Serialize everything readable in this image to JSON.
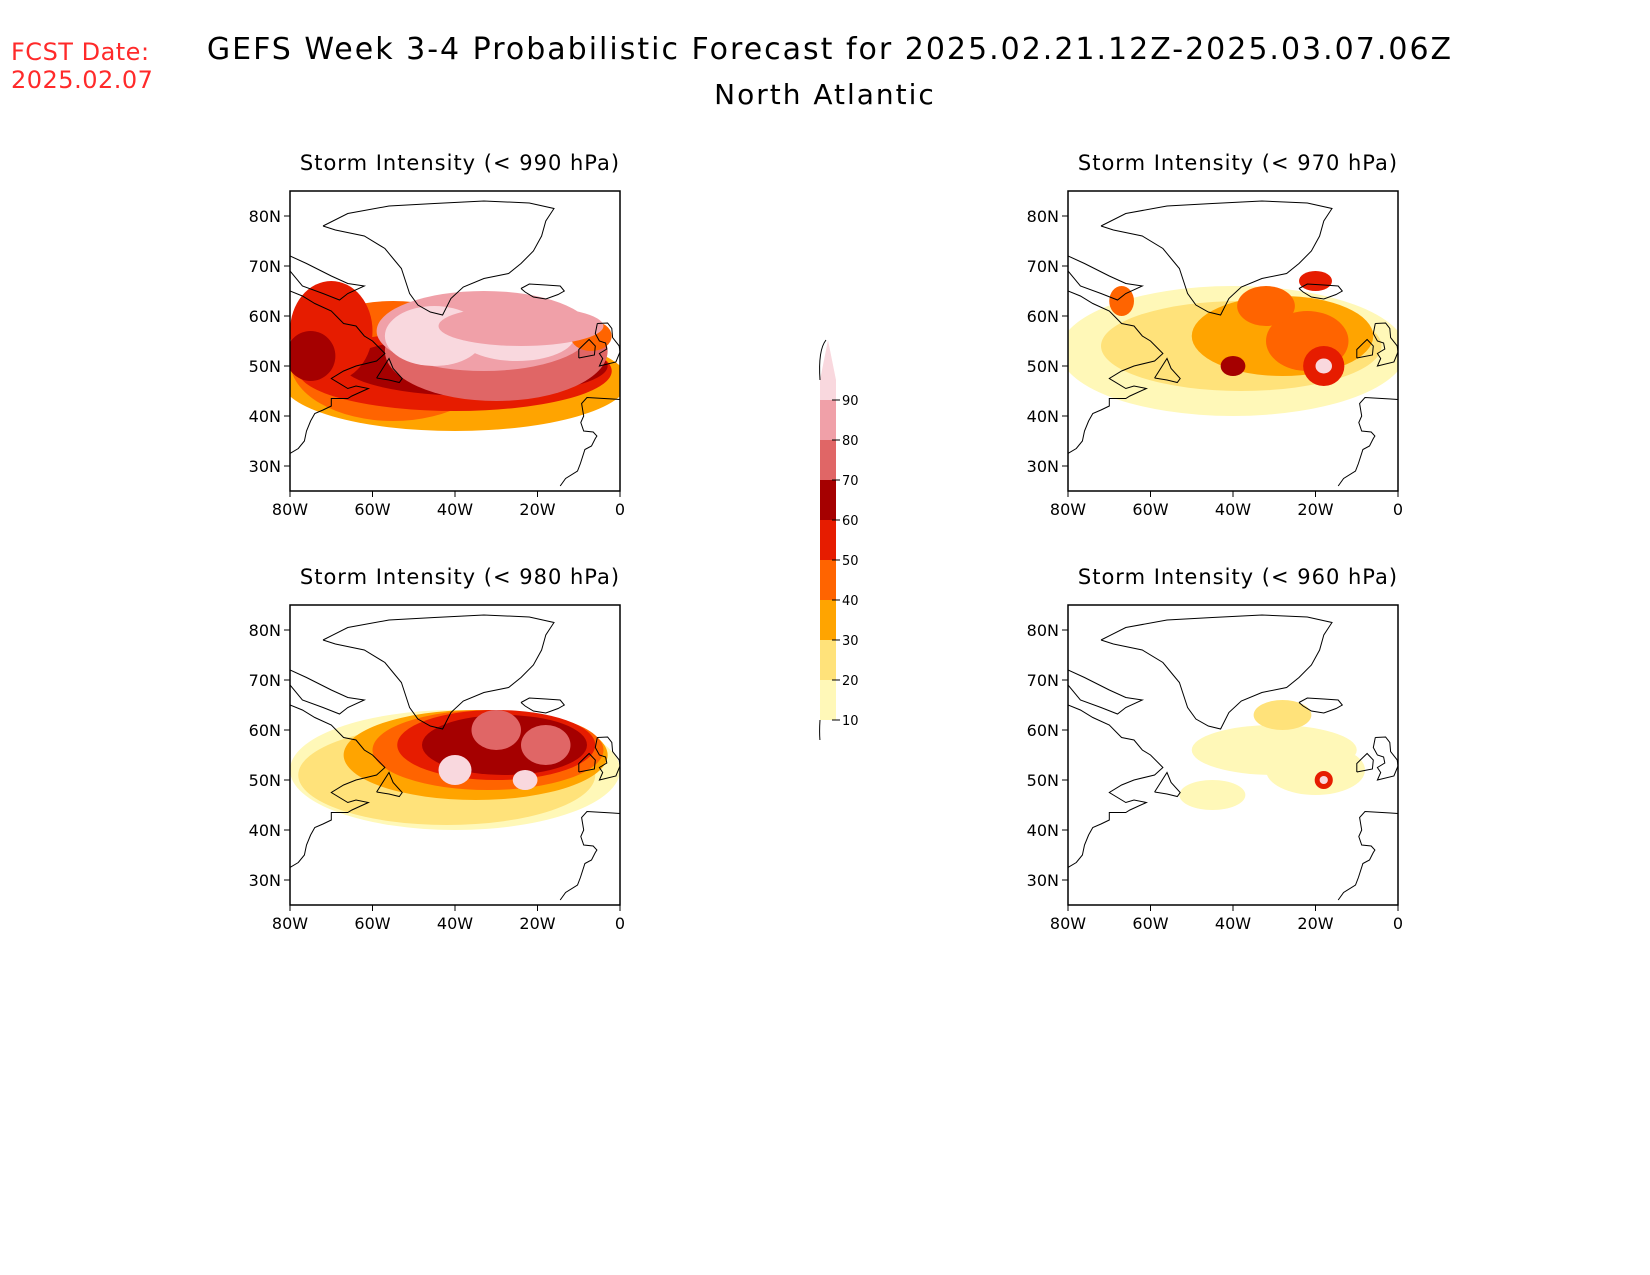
{
  "header": {
    "fcst_label": "FCST Date:",
    "fcst_date": "2025.02.07",
    "title": "GEFS Week 3-4 Probabilistic Forecast for 2025.02.21.12Z-2025.03.07.06Z",
    "region": "North Atlantic"
  },
  "axes": {
    "lat_labels": [
      "80N",
      "70N",
      "60N",
      "50N",
      "40N",
      "30N"
    ],
    "lon_labels": [
      "80W",
      "60W",
      "40W",
      "20W",
      "0"
    ],
    "lat_values": [
      80,
      70,
      60,
      50,
      40,
      30
    ],
    "lon_values": [
      -80,
      -60,
      -40,
      -20,
      0
    ],
    "lat_range": [
      25,
      85
    ],
    "lon_range": [
      -80,
      0
    ]
  },
  "panels": [
    {
      "id": "p990",
      "title": "Storm Intensity (< 990 hPa)",
      "threshold_hpa": 990
    },
    {
      "id": "p970",
      "title": "Storm Intensity (< 970 hPa)",
      "threshold_hpa": 970
    },
    {
      "id": "p980",
      "title": "Storm Intensity (< 980 hPa)",
      "threshold_hpa": 980
    },
    {
      "id": "p960",
      "title": "Storm Intensity (< 960 hPa)",
      "threshold_hpa": 960
    }
  ],
  "colorbar": {
    "labels": [
      "90",
      "80",
      "70",
      "60",
      "50",
      "40",
      "30",
      "20",
      "10"
    ],
    "levels": [
      10,
      20,
      30,
      40,
      50,
      60,
      70,
      80,
      90
    ],
    "colors": [
      "#fff8b8",
      "#ffe27a",
      "#ffa400",
      "#ff6400",
      "#e61c00",
      "#a50000",
      "#e06666",
      "#f0a0a8",
      "#f9d8de"
    ]
  }
}
